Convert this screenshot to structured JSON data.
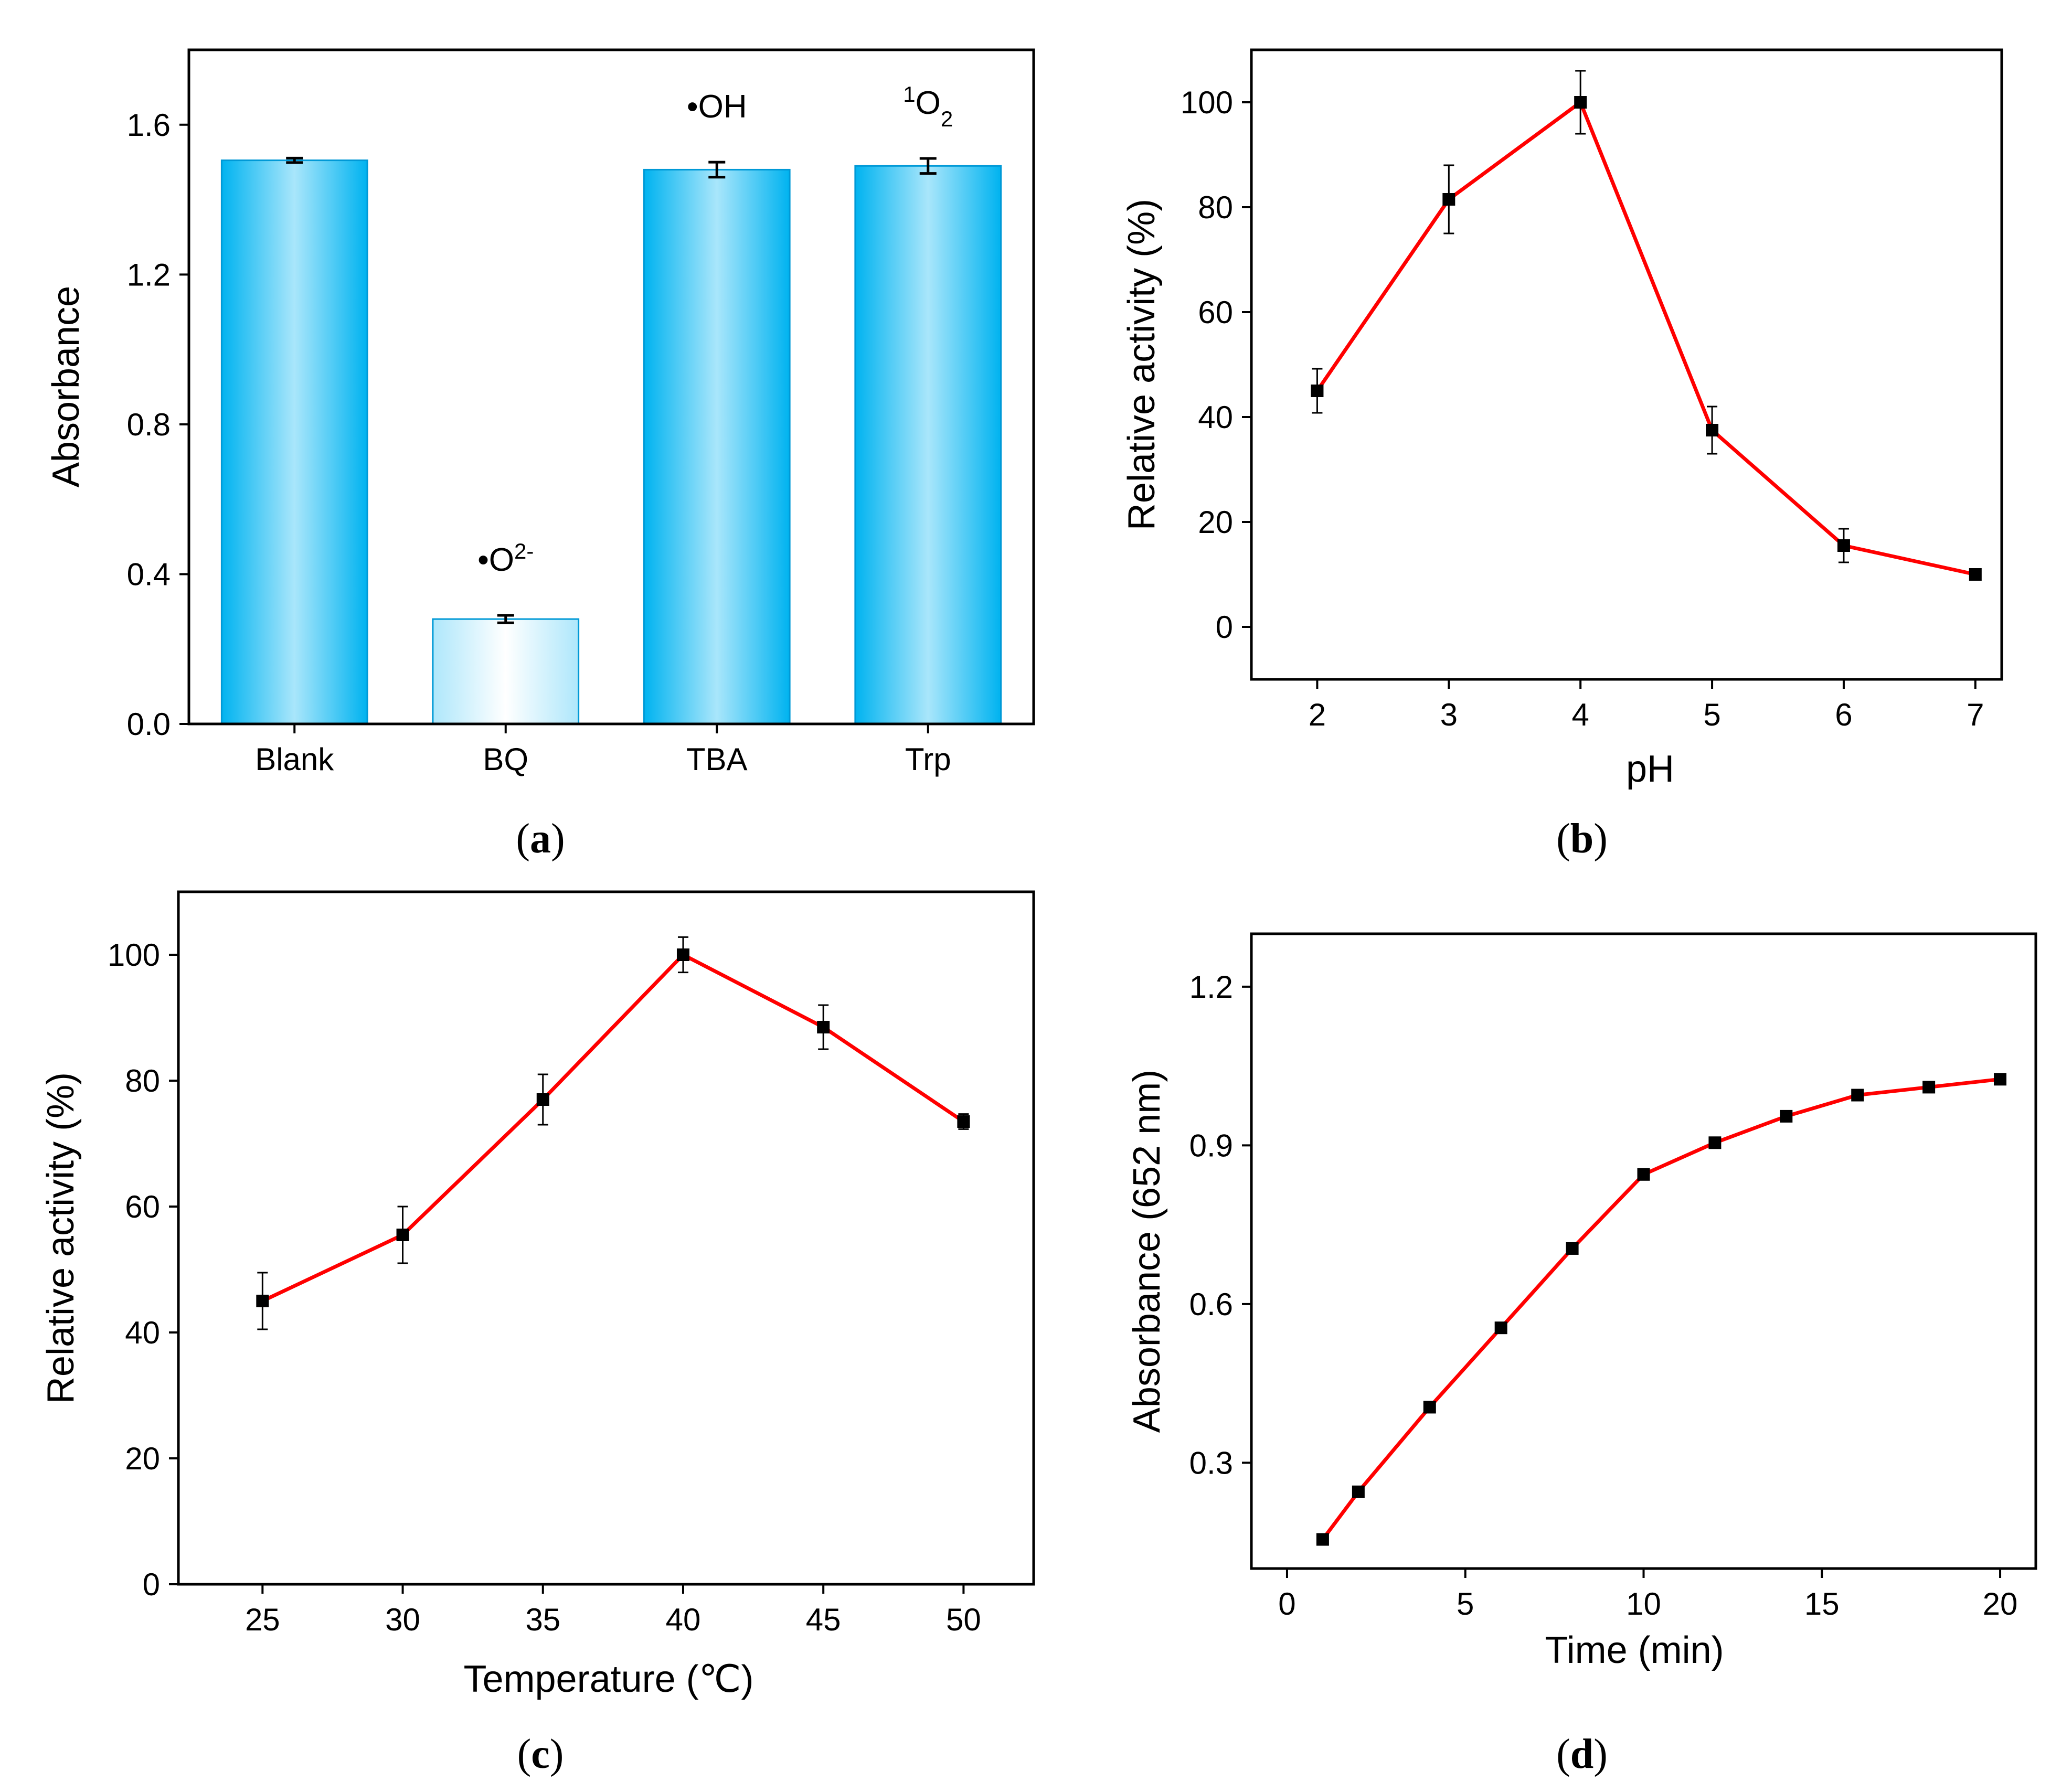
{
  "chart_data": [
    {
      "panel": "a",
      "panel_label": "a",
      "type": "bar",
      "ylabel": "Absorbance",
      "xlabel": "",
      "ylim": [
        0,
        1.8
      ],
      "yticks": [
        "0.0",
        "0.4",
        "0.8",
        "1.2",
        "1.6"
      ],
      "categories": [
        "Blank",
        "BQ",
        "TBA",
        "Trp"
      ],
      "values": [
        1.505,
        0.28,
        1.48,
        1.49
      ],
      "errors": [
        0.006,
        0.01,
        0.02,
        0.02
      ],
      "bar_styles": [
        "filled",
        "light",
        "filled",
        "filled"
      ],
      "annotations": [
        {
          "category": "BQ",
          "text": "•O",
          "sup": "2-",
          "pre_sup": ""
        },
        {
          "category": "TBA",
          "text": "•OH",
          "sup": "",
          "pre_sup": ""
        },
        {
          "category": "Trp",
          "text": "O",
          "sub": "2",
          "pre_sup": "1"
        }
      ],
      "colors": {
        "bar": "#00b3f0",
        "bar_light": "#cfeefb",
        "edge": "#0099d6"
      }
    },
    {
      "panel": "b",
      "panel_label": "b",
      "type": "line",
      "xlabel": "pH",
      "ylabel": "Relative activity (%)",
      "xlim": [
        1.5,
        7.2
      ],
      "ylim": [
        -10,
        110
      ],
      "xticks": [
        2,
        3,
        4,
        5,
        6,
        7
      ],
      "yticks": [
        0,
        20,
        40,
        60,
        80,
        100
      ],
      "x": [
        2,
        3,
        4,
        5,
        6,
        7
      ],
      "y": [
        45,
        81.5,
        100,
        37.5,
        15.5,
        10
      ],
      "errors": [
        4.2,
        6.5,
        6,
        4.5,
        3.2,
        0.5
      ],
      "colors": {
        "line": "#ff0000",
        "marker": "#000000"
      }
    },
    {
      "panel": "c",
      "panel_label": "c",
      "type": "line",
      "xlabel": "Temperature (℃)",
      "ylabel": "Relative activity (%)",
      "xlim": [
        22,
        52.5
      ],
      "ylim": [
        0,
        110
      ],
      "xticks": [
        25,
        30,
        35,
        40,
        45,
        50
      ],
      "yticks": [
        0,
        20,
        40,
        60,
        80,
        100
      ],
      "x": [
        25,
        30,
        35,
        40,
        45,
        50
      ],
      "y": [
        45,
        55.5,
        77,
        100,
        88.5,
        73.5
      ],
      "errors": [
        4.5,
        4.5,
        4,
        2.8,
        3.5,
        1.2
      ],
      "colors": {
        "line": "#ff0000",
        "marker": "#000000"
      }
    },
    {
      "panel": "d",
      "panel_label": "d",
      "type": "line",
      "xlabel": "Time (min)",
      "ylabel": "Absorbance (652 nm)",
      "xlim": [
        -1,
        21
      ],
      "ylim": [
        0.1,
        1.3
      ],
      "xticks": [
        0,
        5,
        10,
        15,
        20
      ],
      "yticks": [
        "0.3",
        "0.6",
        "0.9",
        "1.2"
      ],
      "x": [
        1,
        2,
        4,
        6,
        8,
        10,
        12,
        14,
        16,
        18,
        20
      ],
      "y": [
        0.155,
        0.245,
        0.405,
        0.555,
        0.705,
        0.845,
        0.905,
        0.955,
        0.995,
        1.01,
        1.025
      ],
      "errors": [],
      "colors": {
        "line": "#ff0000",
        "marker": "#000000"
      }
    }
  ]
}
